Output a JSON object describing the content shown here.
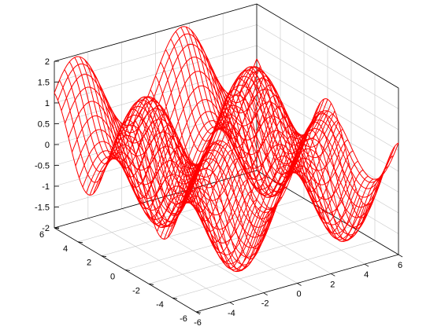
{
  "chart_data": {
    "type": "surface",
    "title": "",
    "xlabel": "",
    "ylabel": "",
    "zlabel": "",
    "function": "sin(x) + cos(y)",
    "x_range": [
      -6,
      6
    ],
    "y_range": [
      -6,
      6
    ],
    "z_range": [
      -2,
      2
    ],
    "mesh_samples": 41,
    "x_ticks": [
      "-6",
      "-4",
      "-2",
      "0",
      "2",
      "4",
      "6"
    ],
    "y_ticks": [
      "-6",
      "-4",
      "-2",
      "0",
      "2",
      "4",
      "6"
    ],
    "z_ticks": [
      "-2",
      "-1.5",
      "-1",
      "-0.5",
      "0",
      "0.5",
      "1",
      "1.5",
      "2"
    ],
    "grid": true,
    "legend": "none",
    "line_color": "#ff0000"
  }
}
